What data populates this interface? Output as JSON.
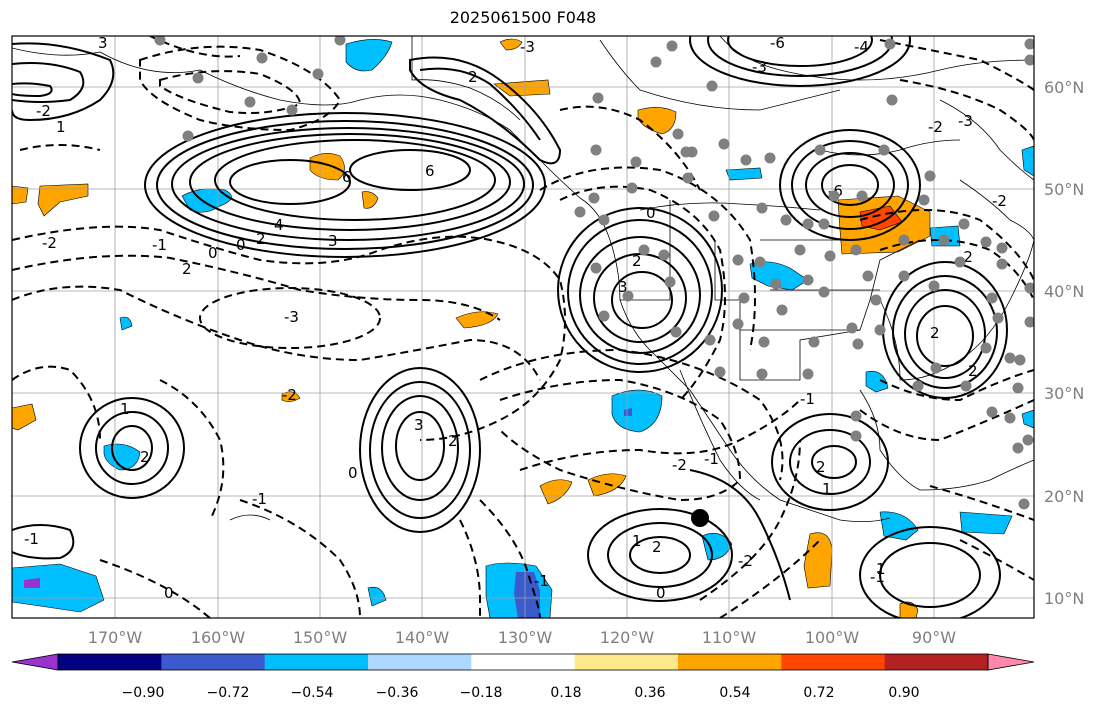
{
  "title": "2025061500 F048",
  "map": {
    "lon_ticks": [
      "170°W",
      "160°W",
      "150°W",
      "140°W",
      "130°W",
      "120°W",
      "110°W",
      "100°W",
      "90°W"
    ],
    "lat_ticks": [
      "60°N",
      "50°N",
      "40°N",
      "30°N",
      "20°N",
      "10°N"
    ],
    "contour_labels": [
      "6",
      "6",
      "4",
      "2",
      "3",
      "0",
      "-2",
      "-1",
      "2",
      "0",
      "-3",
      "2",
      "3",
      "3",
      "2",
      "0",
      "-2",
      "-1",
      "1",
      "2",
      "3",
      "-2",
      "1",
      "-1",
      "-3",
      "2",
      "0",
      "2",
      "-2",
      "2",
      "-1",
      "-2",
      "-1",
      "1",
      "2",
      "-3",
      "-2",
      "-6",
      "-4",
      "-3",
      "-6",
      "-2",
      "-2",
      "2",
      "1",
      "-1",
      "1",
      "0",
      "-1",
      "0"
    ]
  },
  "colorbar": {
    "labels": [
      "−0.90",
      "−0.72",
      "−0.54",
      "−0.36",
      "−0.18",
      "0.18",
      "0.36",
      "0.54",
      "0.72",
      "0.90"
    ],
    "colors": [
      "#9933cc",
      "#000080",
      "#3b5bcc",
      "#00bfff",
      "#add8ff",
      "#ffffff",
      "#fde98a",
      "#ffa500",
      "#ff4500",
      "#b22222",
      "#ff88aa"
    ]
  }
}
